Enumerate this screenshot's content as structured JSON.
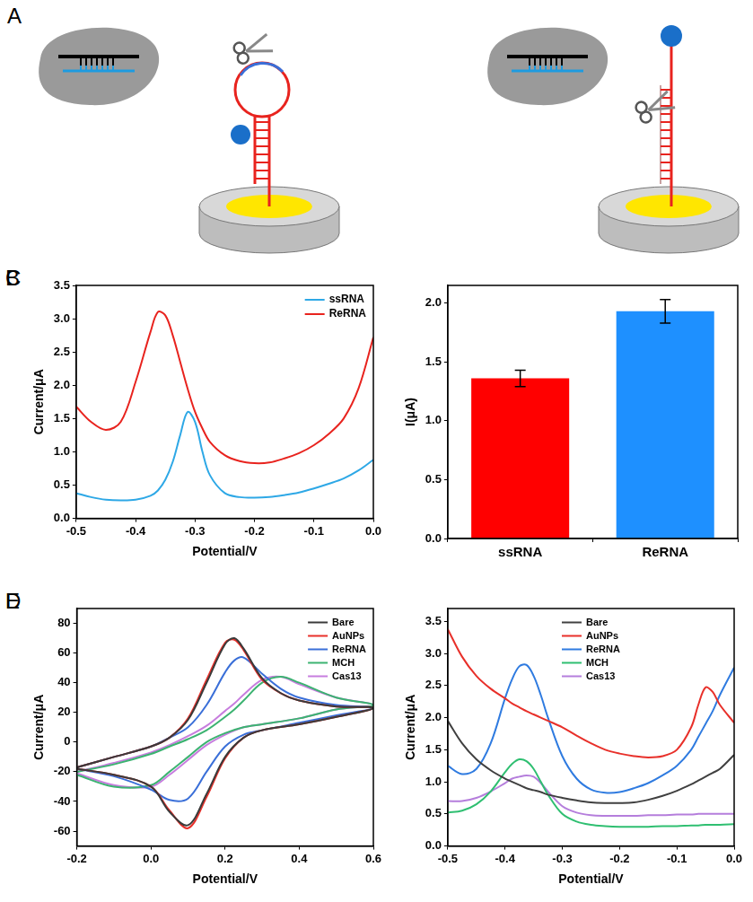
{
  "panel_labels": [
    "A",
    "B",
    "C",
    "D",
    "E"
  ],
  "chart_data": [
    {
      "type": "line",
      "xlabel": "Potential/V",
      "ylabel": "Current/μA",
      "x": [
        -0.5,
        -0.475,
        -0.45,
        -0.425,
        -0.4,
        -0.375,
        -0.3625,
        -0.35,
        -0.3375,
        -0.325,
        -0.3125,
        -0.3,
        -0.2875,
        -0.275,
        -0.25,
        -0.225,
        -0.2,
        -0.175,
        -0.15,
        -0.125,
        -0.1,
        -0.075,
        -0.05,
        -0.025,
        0
      ],
      "series": [
        {
          "name": "ssRNA",
          "color": "#2ea8e6",
          "values": [
            0.38,
            0.32,
            0.28,
            0.27,
            0.28,
            0.34,
            0.42,
            0.58,
            0.85,
            1.25,
            1.6,
            1.45,
            1.0,
            0.65,
            0.38,
            0.32,
            0.31,
            0.32,
            0.35,
            0.39,
            0.45,
            0.52,
            0.6,
            0.72,
            0.88
          ]
        },
        {
          "name": "ReRNA",
          "color": "#e8231e",
          "values": [
            1.68,
            1.45,
            1.33,
            1.45,
            2.05,
            2.8,
            3.1,
            3.05,
            2.75,
            2.35,
            1.95,
            1.6,
            1.35,
            1.15,
            0.95,
            0.86,
            0.83,
            0.84,
            0.9,
            0.98,
            1.1,
            1.27,
            1.5,
            1.95,
            2.72
          ]
        }
      ],
      "xlim": [
        -0.5,
        0
      ],
      "xticks": [
        -0.5,
        -0.4,
        -0.3,
        -0.2,
        -0.1,
        {
          "value": 0,
          "label": "0.0"
        }
      ],
      "ylim": [
        0,
        3.5
      ],
      "yticks": [
        {
          "value": 0,
          "label": "0.0"
        },
        0.5,
        {
          "value": 1,
          "label": "1.0"
        },
        1.5,
        {
          "value": 2,
          "label": "2.0"
        },
        2.5,
        {
          "value": 3,
          "label": "3.0"
        },
        3.5
      ],
      "grid": false,
      "legend": "top-right"
    },
    {
      "type": "bar",
      "ylabel": "I(μA)",
      "categories": [
        "ssRNA",
        "ReRNA"
      ],
      "values": [
        1.36,
        1.93
      ],
      "errors": [
        0.07,
        0.1
      ],
      "colors": [
        "#ff0000",
        "#1e90ff"
      ],
      "ylim": [
        0,
        2.15
      ],
      "yticks": [
        {
          "value": 0,
          "label": "0.0"
        },
        0.5,
        {
          "value": 1,
          "label": "1.0"
        },
        1.5,
        {
          "value": 2,
          "label": "2.0"
        }
      ],
      "grid": false
    },
    {
      "type": "line",
      "xlabel": "Potential/V",
      "ylabel": "Current/μA",
      "x": [
        -0.2,
        -0.1,
        0,
        0.05,
        0.1,
        0.15,
        0.2,
        0.225,
        0.25,
        0.3,
        0.35,
        0.4,
        0.5,
        0.6,
        0.5,
        0.4,
        0.3,
        0.25,
        0.2,
        0.15,
        0.1,
        0.05,
        0,
        -0.1,
        -0.2
      ],
      "series": [
        {
          "name": "Bare",
          "color": "#3a3a3a",
          "values": [
            -17,
            -10,
            -3,
            3,
            15,
            40,
            66,
            70,
            63,
            43,
            33,
            28,
            24,
            23,
            17,
            12,
            8,
            3,
            -10,
            -35,
            -56,
            -47,
            -30,
            -22,
            -18
          ]
        },
        {
          "name": "AuNPs",
          "color": "#e8302a",
          "values": [
            -17,
            -10,
            -3,
            3,
            16,
            42,
            67,
            69,
            62,
            42,
            33,
            28,
            24,
            23,
            17,
            12,
            8,
            3,
            -11,
            -37,
            -58,
            -46,
            -30,
            -22,
            -18
          ]
        },
        {
          "name": "ReRNA",
          "color": "#3a6fd8",
          "values": [
            -17,
            -10,
            -3,
            3,
            10,
            25,
            47,
            55,
            57,
            46,
            36,
            30,
            25,
            23,
            18,
            13,
            8,
            5,
            -3,
            -20,
            -38,
            -39,
            -32,
            -23,
            -18
          ]
        },
        {
          "name": "MCH",
          "color": "#3cb371",
          "values": [
            -20,
            -15,
            -8,
            -3,
            2,
            8,
            17,
            22,
            28,
            40,
            44,
            40,
            30,
            25,
            22,
            16,
            12,
            10,
            6,
            0,
            -10,
            -20,
            -29,
            -30,
            -22
          ]
        },
        {
          "name": "Cas13",
          "color": "#c77dde",
          "values": [
            -20,
            -14,
            -7,
            -2,
            4,
            11,
            21,
            26,
            32,
            42,
            44,
            39,
            30,
            25,
            22,
            16,
            12,
            10,
            5,
            -2,
            -12,
            -22,
            -30,
            -29,
            -21
          ]
        }
      ],
      "xlim": [
        -0.2,
        0.6
      ],
      "xticks": [
        -0.2,
        {
          "value": 0,
          "label": "0.0"
        },
        0.2,
        0.4,
        0.6
      ],
      "ylim": [
        -70,
        90
      ],
      "yticks": [
        -60,
        -40,
        -20,
        0,
        20,
        40,
        60,
        80
      ],
      "grid": false,
      "legend": "top-right"
    },
    {
      "type": "line",
      "xlabel": "Potential/V",
      "ylabel": "Current/μA",
      "x": [
        -0.5,
        -0.475,
        -0.45,
        -0.425,
        -0.4,
        -0.3875,
        -0.375,
        -0.3625,
        -0.35,
        -0.3375,
        -0.325,
        -0.3,
        -0.275,
        -0.25,
        -0.225,
        -0.2,
        -0.175,
        -0.15,
        -0.125,
        -0.1,
        -0.075,
        -0.0625,
        -0.05,
        -0.0375,
        -0.025,
        0
      ],
      "series": [
        {
          "name": "Bare",
          "color": "#404040",
          "values": [
            1.95,
            1.6,
            1.35,
            1.18,
            1.05,
            1.0,
            0.95,
            0.9,
            0.87,
            0.84,
            0.8,
            0.75,
            0.71,
            0.68,
            0.67,
            0.67,
            0.68,
            0.72,
            0.78,
            0.86,
            0.96,
            1.02,
            1.08,
            1.14,
            1.2,
            1.42
          ]
        },
        {
          "name": "AuNPs",
          "color": "#e8302a",
          "values": [
            3.38,
            2.95,
            2.65,
            2.45,
            2.3,
            2.22,
            2.16,
            2.1,
            2.05,
            2.0,
            1.95,
            1.85,
            1.72,
            1.6,
            1.5,
            1.44,
            1.4,
            1.38,
            1.4,
            1.5,
            1.85,
            2.2,
            2.47,
            2.4,
            2.2,
            1.92
          ]
        },
        {
          "name": "ReRNA",
          "color": "#2f7be0",
          "values": [
            1.25,
            1.12,
            1.2,
            1.6,
            2.3,
            2.6,
            2.8,
            2.82,
            2.65,
            2.35,
            2.0,
            1.4,
            1.05,
            0.88,
            0.83,
            0.84,
            0.9,
            0.98,
            1.1,
            1.25,
            1.5,
            1.7,
            1.9,
            2.1,
            2.35,
            2.78
          ]
        },
        {
          "name": "MCH",
          "color": "#2fbf71",
          "values": [
            0.52,
            0.55,
            0.65,
            0.85,
            1.15,
            1.28,
            1.35,
            1.32,
            1.2,
            1.0,
            0.8,
            0.5,
            0.38,
            0.33,
            0.31,
            0.3,
            0.3,
            0.3,
            0.31,
            0.31,
            0.32,
            0.32,
            0.33,
            0.33,
            0.33,
            0.34
          ]
        },
        {
          "name": "Cas13",
          "color": "#b57edc",
          "values": [
            0.7,
            0.7,
            0.75,
            0.85,
            0.98,
            1.05,
            1.08,
            1.1,
            1.08,
            0.98,
            0.85,
            0.62,
            0.52,
            0.48,
            0.47,
            0.47,
            0.47,
            0.48,
            0.48,
            0.49,
            0.49,
            0.5,
            0.5,
            0.5,
            0.5,
            0.5
          ]
        }
      ],
      "xlim": [
        -0.5,
        0
      ],
      "xticks": [
        -0.5,
        -0.4,
        -0.3,
        -0.2,
        -0.1,
        {
          "value": 0,
          "label": "0.0"
        }
      ],
      "ylim": [
        0,
        3.7
      ],
      "yticks": [
        {
          "value": 0,
          "label": "0.0"
        },
        0.5,
        {
          "value": 1,
          "label": "1.0"
        },
        1.5,
        {
          "value": 2,
          "label": "2.0"
        },
        2.5,
        {
          "value": 3,
          "label": "3.0"
        },
        3.5
      ],
      "grid": false,
      "legend": "top"
    }
  ]
}
